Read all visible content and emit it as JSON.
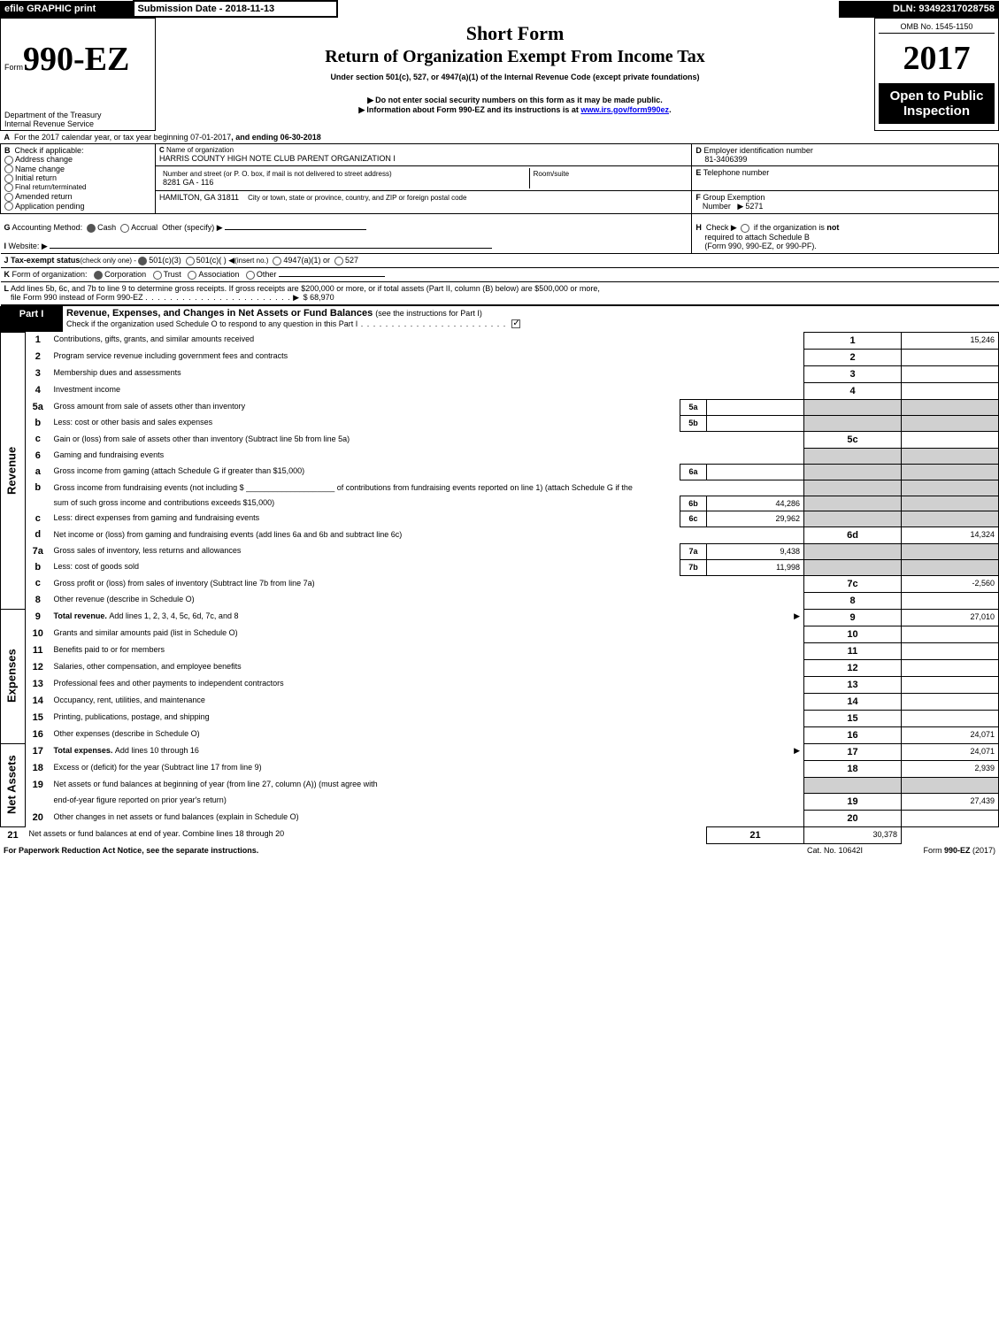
{
  "top": {
    "efile": "efile GRAPHIC print",
    "subDateLabel": "Submission Date - 2018-11-13",
    "dln": "DLN: 93492317028758",
    "omb": "OMB No. 1545-1150",
    "formLabel": "Form",
    "formNo": "990-EZ",
    "title": "Short Form",
    "subtitle": "Return of Organization Exempt From Income Tax",
    "under": "Under section 501(c), 527, or 4947(a)(1) of the Internal Revenue Code (except private foundations)",
    "year": "2017",
    "dept": "Department of the Treasury",
    "irs": "Internal Revenue Service",
    "warn1": "Do not enter social security numbers on this form as it may be made public.",
    "warn2": "Information about Form 990-EZ and its instructions is at ",
    "warn2link": "www.irs.gov/form990ez",
    "warn2end": ".",
    "openPublic1": "Open to Public",
    "openPublic2": "Inspection"
  },
  "hdr": {
    "A": "For the 2017 calendar year, or tax year beginning 07-01-2017",
    "Aend": ", and ending 06-30-2018",
    "Blabel": "Check if applicable:",
    "B": {
      "addr": "Address change",
      "name": "Name change",
      "init": "Initial return",
      "final": "Final return/terminated",
      "amend": "Amended return",
      "app": "Application pending"
    },
    "CnameLabel": "Name of organization",
    "Cname": "HARRIS COUNTY HIGH NOTE CLUB PARENT ORGANIZATION I",
    "streetLabel": "Number and street (or P. O. box, if mail is not delivered to street address)",
    "street": "8281 GA - 116",
    "roomLabel": "Room/suite",
    "cityLabel": "City or town, state or province, country, and ZIP or foreign postal code",
    "city": "HAMILTON, GA  31811",
    "DeinLabel": "Employer identification number",
    "Dein": "81-3406399",
    "EtelLabel": "Telephone number",
    "FgrpLabel": "Group Exemption",
    "FgrpLabel2": "Number",
    "Fgrp": "5271",
    "Gacct": "Accounting Method:",
    "Gcash": "Cash",
    "Gaccr": "Accrual",
    "Gother": "Other (specify)",
    "Hlabel1": "Check",
    "Hlabel2": "if the organization is",
    "Hlabel3": "not",
    "Hlabel4": "required to attach Schedule B",
    "Hlabel5": "(Form 990, 990-EZ, or 990-PF).",
    "Iweb": "Website:",
    "Jtax": "Tax-exempt status",
    "Jtaxsub": "(check only one) - ",
    "J1": "501(c)(3)",
    "J2": "501(c)(  )",
    "J2ins": "(insert no.)",
    "J3": "4947(a)(1) or",
    "J4": "527",
    "Kform": "Form of organization:",
    "Kcorp": "Corporation",
    "Ktrust": "Trust",
    "Kassoc": "Association",
    "Kother": "Other",
    "L1": "Add lines 5b, 6c, and 7b to line 9 to determine gross receipts. If gross receipts are $200,000 or more, or if total assets (Part II, column (B) below) are $500,000 or more,",
    "L2": "file Form 990 instead of Form 990-EZ",
    "Lamt": "$ 68,970"
  },
  "part1": {
    "label": "Part I",
    "title": "Revenue, Expenses, and Changes in Net Assets or Fund Balances ",
    "titleSub": "(see the instructions for Part I)",
    "checkLine": "Check if the organization used Schedule O to respond to any question in this Part I"
  },
  "sideLabels": {
    "rev": "Revenue",
    "exp": "Expenses",
    "net": "Net Assets"
  },
  "lines": [
    {
      "n": "1",
      "t": "Contributions, gifts, grants, and similar amounts received",
      "r": "1",
      "a": "15,246"
    },
    {
      "n": "2",
      "t": "Program service revenue including government fees and contracts",
      "r": "2",
      "a": ""
    },
    {
      "n": "3",
      "t": "Membership dues and assessments",
      "r": "3",
      "a": ""
    },
    {
      "n": "4",
      "t": "Investment income",
      "r": "4",
      "a": ""
    },
    {
      "n": "5a",
      "t": "Gross amount from sale of assets other than inventory",
      "ml": "5a",
      "mv": "",
      "shaded": true
    },
    {
      "n": "b",
      "t": "Less: cost or other basis and sales expenses",
      "ml": "5b",
      "mv": "",
      "shaded": true
    },
    {
      "n": "c",
      "t": "Gain or (loss) from sale of assets other than inventory (Subtract line 5b from line 5a)",
      "r": "5c",
      "a": ""
    },
    {
      "n": "6",
      "t": "Gaming and fundraising events",
      "shadedFull": true
    },
    {
      "n": "a",
      "t": "Gross income from gaming (attach Schedule G if greater than $15,000)",
      "ml": "6a",
      "mv": "",
      "shaded": true
    },
    {
      "n": "b",
      "t": "Gross income from fundraising events (not including $ ____________________ of contributions from fundraising events reported on line 1) (attach Schedule G if the",
      "shaded": true
    },
    {
      "n": "",
      "t": "sum of such gross income and contributions exceeds $15,000)",
      "ml": "6b",
      "mv": "44,286",
      "shaded": true
    },
    {
      "n": "c",
      "t": "Less: direct expenses from gaming and fundraising events",
      "ml": "6c",
      "mv": "29,962",
      "shaded": true
    },
    {
      "n": "d",
      "t": "Net income or (loss) from gaming and fundraising events (add lines 6a and 6b and subtract line 6c)",
      "r": "6d",
      "a": "14,324"
    },
    {
      "n": "7a",
      "t": "Gross sales of inventory, less returns and allowances",
      "ml": "7a",
      "mv": "9,438",
      "shaded": true
    },
    {
      "n": "b",
      "t": "Less: cost of goods sold",
      "ml": "7b",
      "mv": "11,998",
      "shaded": true
    },
    {
      "n": "c",
      "t": "Gross profit or (loss) from sales of inventory (Subtract line 7b from line 7a)",
      "r": "7c",
      "a": "-2,560"
    },
    {
      "n": "8",
      "t": "Other revenue (describe in Schedule O)",
      "r": "8",
      "a": ""
    },
    {
      "n": "9",
      "t": "Total revenue. ",
      "t2": "Add lines 1, 2, 3, 4, 5c, 6d, 7c, and 8",
      "r": "9",
      "a": "27,010",
      "arrow": true,
      "boldFirst": true
    },
    {
      "n": "10",
      "t": "Grants and similar amounts paid (list in Schedule O)",
      "r": "10",
      "a": ""
    },
    {
      "n": "11",
      "t": "Benefits paid to or for members",
      "r": "11",
      "a": ""
    },
    {
      "n": "12",
      "t": "Salaries, other compensation, and employee benefits",
      "r": "12",
      "a": ""
    },
    {
      "n": "13",
      "t": "Professional fees and other payments to independent contractors",
      "r": "13",
      "a": ""
    },
    {
      "n": "14",
      "t": "Occupancy, rent, utilities, and maintenance",
      "r": "14",
      "a": ""
    },
    {
      "n": "15",
      "t": "Printing, publications, postage, and shipping",
      "r": "15",
      "a": ""
    },
    {
      "n": "16",
      "t": "Other expenses (describe in Schedule O)",
      "r": "16",
      "a": "24,071"
    },
    {
      "n": "17",
      "t": "Total expenses. ",
      "t2": "Add lines 10 through 16",
      "r": "17",
      "a": "24,071",
      "arrow": true,
      "boldFirst": true
    },
    {
      "n": "18",
      "t": "Excess or (deficit) for the year (Subtract line 17 from line 9)",
      "r": "18",
      "a": "2,939"
    },
    {
      "n": "19",
      "t": "Net assets or fund balances at beginning of year (from line 27, column (A)) (must agree with",
      "shaded": true
    },
    {
      "n": "",
      "t": "end-of-year figure reported on prior year's return)",
      "r": "19",
      "a": "27,439"
    },
    {
      "n": "20",
      "t": "Other changes in net assets or fund balances (explain in Schedule O)",
      "r": "20",
      "a": ""
    },
    {
      "n": "21",
      "t": "Net assets or fund balances at end of year. Combine lines 18 through 20",
      "r": "21",
      "a": "30,378"
    }
  ],
  "foot": {
    "left": "For Paperwork Reduction Act Notice, see the separate instructions.",
    "mid": "Cat. No. 10642I",
    "right1": "Form ",
    "right2": "990-EZ",
    "right3": " (2017)"
  }
}
